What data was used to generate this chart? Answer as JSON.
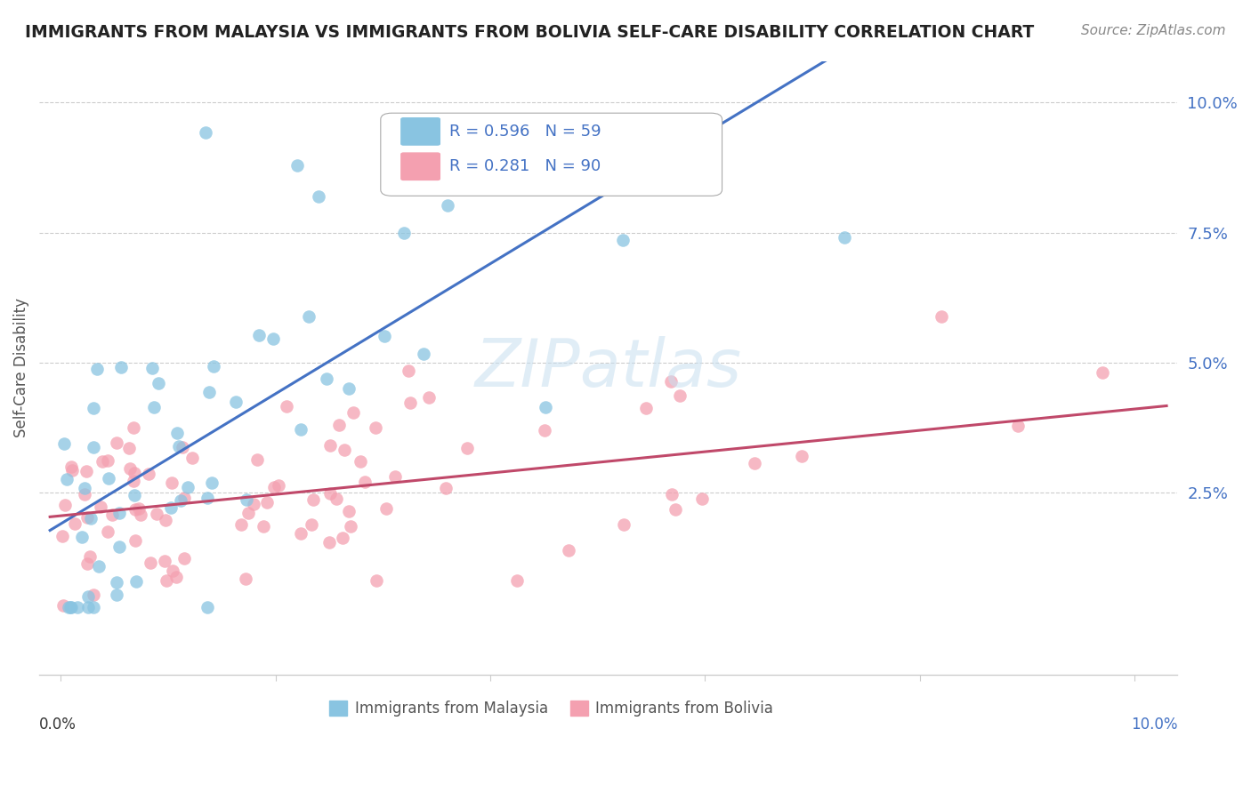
{
  "title": "IMMIGRANTS FROM MALAYSIA VS IMMIGRANTS FROM BOLIVIA SELF-CARE DISABILITY CORRELATION CHART",
  "source": "Source: ZipAtlas.com",
  "ylabel": "Self-Care Disability",
  "color_malaysia": "#89c4e1",
  "color_bolivia": "#f4a0b0",
  "color_line_malaysia": "#4472C4",
  "color_line_bolivia": "#C0496A",
  "legend_R_malaysia": "R = 0.596",
  "legend_N_malaysia": "N = 59",
  "legend_R_bolivia": "R = 0.281",
  "legend_N_bolivia": "N = 90",
  "watermark": "ZIPatlas"
}
